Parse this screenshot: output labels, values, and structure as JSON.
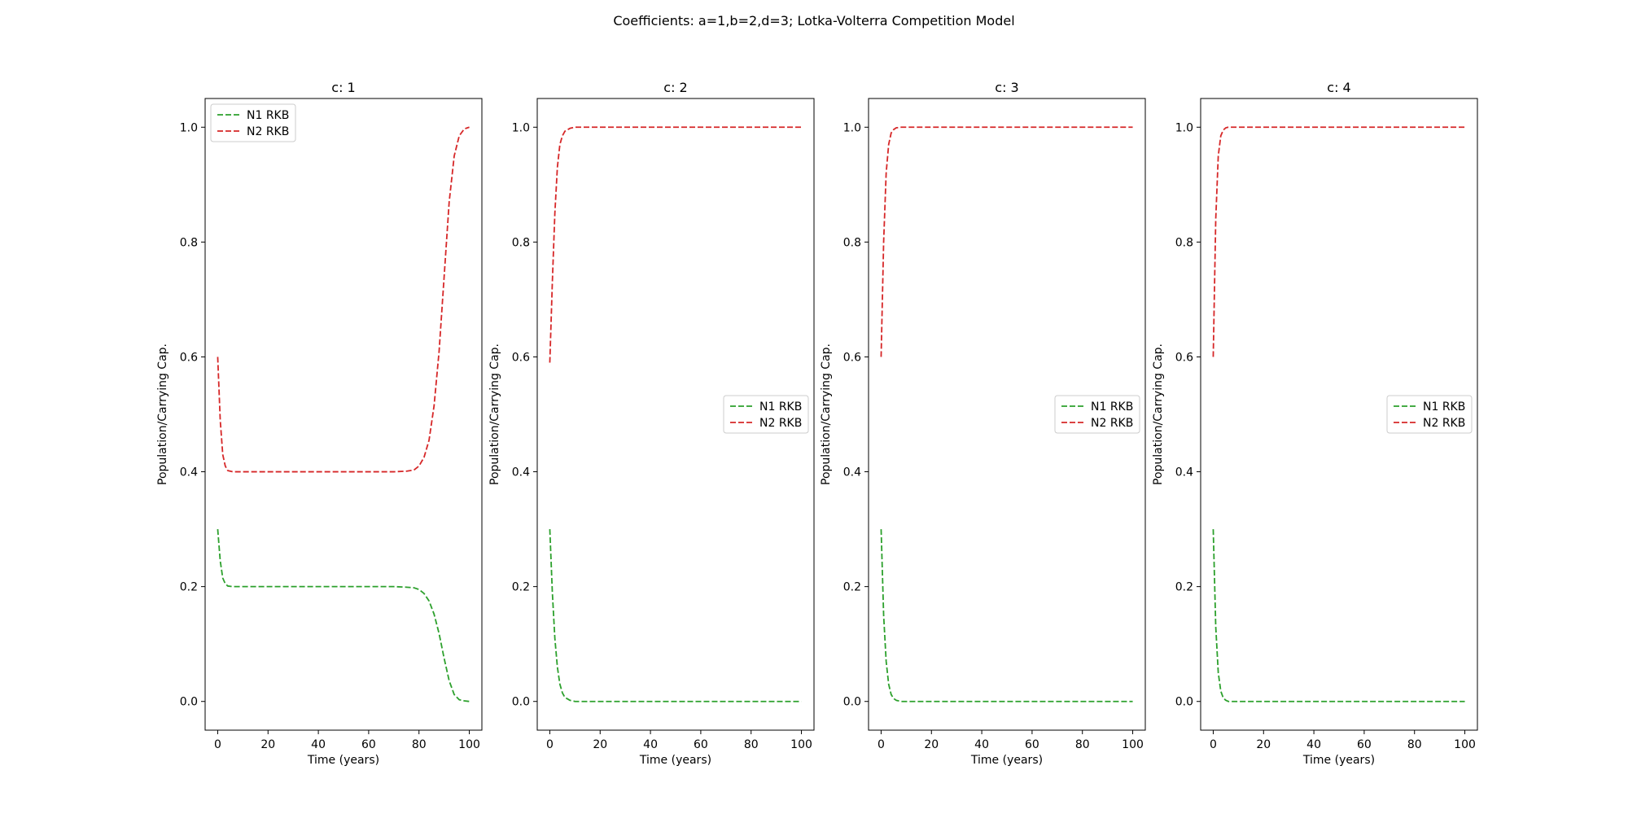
{
  "figure": {
    "suptitle": "Coefficients: a=1,b=2,d=3; Lotka-Volterra Competition Model"
  },
  "chart_data": [
    {
      "type": "line",
      "title": "c: 1",
      "xlabel": "Time (years)",
      "ylabel": "Population/Carrying Cap.",
      "xlim": [
        -5,
        105
      ],
      "ylim": [
        -0.05,
        1.05
      ],
      "xticks": [
        0,
        20,
        40,
        60,
        80,
        100
      ],
      "yticks": [
        0.0,
        0.2,
        0.4,
        0.6,
        0.8,
        1.0
      ],
      "xtick_labels": [
        "0",
        "20",
        "40",
        "60",
        "80",
        "100"
      ],
      "ytick_labels": [
        "0.0",
        "0.2",
        "0.4",
        "0.6",
        "0.8",
        "1.0"
      ],
      "grid": false,
      "legend": "upper left",
      "x": [
        0,
        1,
        2,
        3,
        4,
        6,
        10,
        20,
        40,
        60,
        70,
        75,
        78,
        80,
        82,
        84,
        86,
        88,
        90,
        92,
        94,
        96,
        98,
        100
      ],
      "series": [
        {
          "name": "N1 RKB",
          "color": "#2ca02c",
          "style": "dashed",
          "values": [
            0.3,
            0.245,
            0.215,
            0.205,
            0.201,
            0.2,
            0.2,
            0.2,
            0.2,
            0.2,
            0.2,
            0.199,
            0.198,
            0.195,
            0.188,
            0.175,
            0.152,
            0.118,
            0.075,
            0.036,
            0.012,
            0.003,
            0.001,
            0.0
          ]
        },
        {
          "name": "N2 RKB",
          "color": "#d62728",
          "style": "dashed",
          "values": [
            0.6,
            0.49,
            0.43,
            0.41,
            0.402,
            0.4,
            0.4,
            0.4,
            0.4,
            0.4,
            0.4,
            0.401,
            0.403,
            0.41,
            0.425,
            0.455,
            0.515,
            0.61,
            0.74,
            0.87,
            0.95,
            0.985,
            0.997,
            1.0
          ]
        }
      ]
    },
    {
      "type": "line",
      "title": "c: 2",
      "xlabel": "Time (years)",
      "ylabel": "Population/Carrying Cap.",
      "xlim": [
        -5,
        105
      ],
      "ylim": [
        -0.05,
        1.05
      ],
      "xticks": [
        0,
        20,
        40,
        60,
        80,
        100
      ],
      "yticks": [
        0.0,
        0.2,
        0.4,
        0.6,
        0.8,
        1.0
      ],
      "xtick_labels": [
        "0",
        "20",
        "40",
        "60",
        "80",
        "100"
      ],
      "ytick_labels": [
        "0.0",
        "0.2",
        "0.4",
        "0.6",
        "0.8",
        "1.0"
      ],
      "grid": false,
      "legend": "center right",
      "x": [
        0,
        1,
        2,
        3,
        4,
        5,
        6,
        8,
        10,
        20,
        40,
        60,
        80,
        100
      ],
      "series": [
        {
          "name": "N1 RKB",
          "color": "#2ca02c",
          "style": "dashed",
          "values": [
            0.3,
            0.19,
            0.11,
            0.06,
            0.03,
            0.015,
            0.007,
            0.002,
            0.0,
            0.0,
            0.0,
            0.0,
            0.0,
            0.0
          ]
        },
        {
          "name": "N2 RKB",
          "color": "#d62728",
          "style": "dashed",
          "values": [
            0.59,
            0.73,
            0.85,
            0.93,
            0.97,
            0.985,
            0.993,
            0.998,
            1.0,
            1.0,
            1.0,
            1.0,
            1.0,
            1.0
          ]
        }
      ]
    },
    {
      "type": "line",
      "title": "c: 3",
      "xlabel": "Time (years)",
      "ylabel": "Population/Carrying Cap.",
      "xlim": [
        -5,
        105
      ],
      "ylim": [
        -0.05,
        1.05
      ],
      "xticks": [
        0,
        20,
        40,
        60,
        80,
        100
      ],
      "yticks": [
        0.0,
        0.2,
        0.4,
        0.6,
        0.8,
        1.0
      ],
      "xtick_labels": [
        "0",
        "20",
        "40",
        "60",
        "80",
        "100"
      ],
      "ytick_labels": [
        "0.0",
        "0.2",
        "0.4",
        "0.6",
        "0.8",
        "1.0"
      ],
      "grid": false,
      "legend": "center right",
      "x": [
        0,
        1,
        2,
        3,
        4,
        5,
        6,
        8,
        10,
        20,
        40,
        60,
        80,
        100
      ],
      "series": [
        {
          "name": "N1 RKB",
          "color": "#2ca02c",
          "style": "dashed",
          "values": [
            0.3,
            0.15,
            0.07,
            0.03,
            0.012,
            0.005,
            0.002,
            0.0,
            0.0,
            0.0,
            0.0,
            0.0,
            0.0,
            0.0
          ]
        },
        {
          "name": "N2 RKB",
          "color": "#d62728",
          "style": "dashed",
          "values": [
            0.6,
            0.8,
            0.92,
            0.97,
            0.99,
            0.996,
            0.999,
            1.0,
            1.0,
            1.0,
            1.0,
            1.0,
            1.0,
            1.0
          ]
        }
      ]
    },
    {
      "type": "line",
      "title": "c: 4",
      "xlabel": "Time (years)",
      "ylabel": "Population/Carrying Cap.",
      "xlim": [
        -5,
        105
      ],
      "ylim": [
        -0.05,
        1.05
      ],
      "xticks": [
        0,
        20,
        40,
        60,
        80,
        100
      ],
      "yticks": [
        0.0,
        0.2,
        0.4,
        0.6,
        0.8,
        1.0
      ],
      "xtick_labels": [
        "0",
        "20",
        "40",
        "60",
        "80",
        "100"
      ],
      "ytick_labels": [
        "0.0",
        "0.2",
        "0.4",
        "0.6",
        "0.8",
        "1.0"
      ],
      "grid": false,
      "legend": "center right",
      "x": [
        0,
        1,
        2,
        3,
        4,
        5,
        6,
        8,
        10,
        20,
        40,
        60,
        80,
        100
      ],
      "series": [
        {
          "name": "N1 RKB",
          "color": "#2ca02c",
          "style": "dashed",
          "values": [
            0.3,
            0.13,
            0.05,
            0.018,
            0.006,
            0.002,
            0.0,
            0.0,
            0.0,
            0.0,
            0.0,
            0.0,
            0.0,
            0.0
          ]
        },
        {
          "name": "N2 RKB",
          "color": "#d62728",
          "style": "dashed",
          "values": [
            0.6,
            0.84,
            0.95,
            0.985,
            0.995,
            0.999,
            1.0,
            1.0,
            1.0,
            1.0,
            1.0,
            1.0,
            1.0,
            1.0
          ]
        }
      ]
    }
  ]
}
